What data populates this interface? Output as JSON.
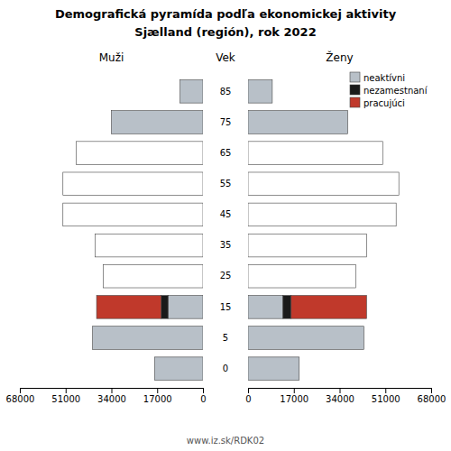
{
  "chart_data": [
    {
      "type": "bar",
      "orientation": "horizontal",
      "stacked": true,
      "title": "Demografická pyramída podľa ekonomickej aktivity",
      "subtitle": "Sjælland (región), rok 2022",
      "xlabel": "Muži",
      "ylabel": "Vek",
      "annotations": [
        "www.iz.sk/RDK02"
      ],
      "categories": [
        85,
        75,
        65,
        55,
        45,
        35,
        25,
        15,
        5,
        0
      ],
      "series": [
        {
          "colors": [
            "#b8c0c8",
            "#b8c0c8",
            "#ffffff",
            "#ffffff",
            "#ffffff",
            "#ffffff",
            "#ffffff",
            "#b8c0c8",
            "#b8c0c8",
            "#b8c0c8"
          ],
          "values": [
            8500,
            34000,
            47000,
            52000,
            52000,
            40000,
            37000,
            13000,
            41000,
            18000
          ]
        },
        {
          "color": "#1a1a1a",
          "values": [
            0,
            0,
            0,
            0,
            0,
            0,
            0,
            2500,
            0,
            0
          ]
        },
        {
          "color": "#c0392b",
          "values": [
            0,
            0,
            0,
            0,
            0,
            0,
            0,
            24000,
            0,
            0
          ]
        }
      ],
      "xlim": [
        0,
        68000
      ],
      "xticks": [
        0,
        17000,
        34000,
        51000,
        68000
      ]
    },
    {
      "type": "bar",
      "orientation": "horizontal",
      "stacked": true,
      "xlabel": "Ženy",
      "tick_labels": "x",
      "legend": "upper right",
      "categories": [
        85,
        75,
        65,
        55,
        45,
        35,
        25,
        15,
        5,
        0
      ],
      "series": [
        {
          "name": "neaktívni",
          "color": "#b8c0c8",
          "colors": [
            "#b8c0c8",
            "#b8c0c8",
            "#ffffff",
            "#ffffff",
            "#ffffff",
            "#ffffff",
            "#ffffff",
            "#b8c0c8",
            "#b8c0c8",
            "#b8c0c8"
          ],
          "values": [
            9000,
            37000,
            50000,
            56000,
            55000,
            44000,
            40000,
            13000,
            43000,
            19000
          ]
        },
        {
          "name": "nezamestnaní",
          "color": "#1a1a1a",
          "values": [
            0,
            0,
            0,
            0,
            0,
            0,
            0,
            3000,
            0,
            0
          ]
        },
        {
          "name": "pracujúci",
          "color": "#c0392b",
          "values": [
            0,
            0,
            0,
            0,
            0,
            0,
            0,
            28000,
            0,
            0
          ]
        }
      ],
      "xlim": [
        0,
        68000
      ],
      "xticks": [
        0,
        17000,
        34000,
        51000,
        68000
      ]
    }
  ]
}
